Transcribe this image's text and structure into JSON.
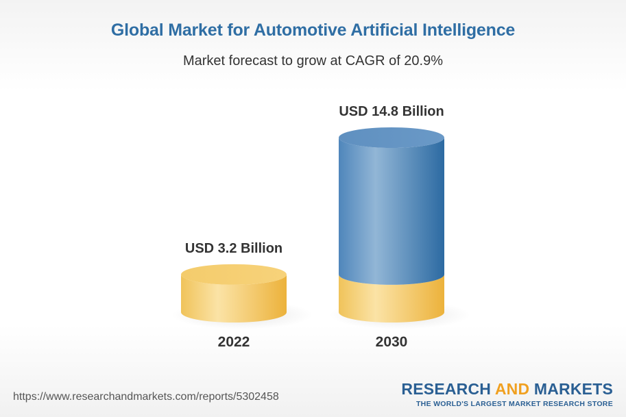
{
  "header": {
    "title": "Global Market for Automotive Artificial Intelligence",
    "subtitle": "Market forecast to grow at CAGR of 20.9%"
  },
  "chart_data": {
    "type": "bar",
    "style": "3d-cylinder",
    "title": "Global Market for Automotive Artificial Intelligence",
    "subtitle": "Market forecast to grow at CAGR of 20.9%",
    "categories": [
      "2022",
      "2030"
    ],
    "values": [
      3.2,
      14.8
    ],
    "unit": "USD Billion",
    "data_labels": [
      "USD 3.2 Billion",
      "USD 14.8 Billion"
    ],
    "xlabel": "",
    "ylabel": "",
    "grid": false,
    "colors": {
      "base": "#f2bd45",
      "growth": "#2f6ea4"
    }
  },
  "footer": {
    "url": "https://www.researchandmarkets.com/reports/5302458",
    "brand_research": "RESEARCH",
    "brand_and": "AND",
    "brand_markets": "MARKETS",
    "brand_tagline": "THE WORLD'S LARGEST MARKET RESEARCH STORE"
  }
}
